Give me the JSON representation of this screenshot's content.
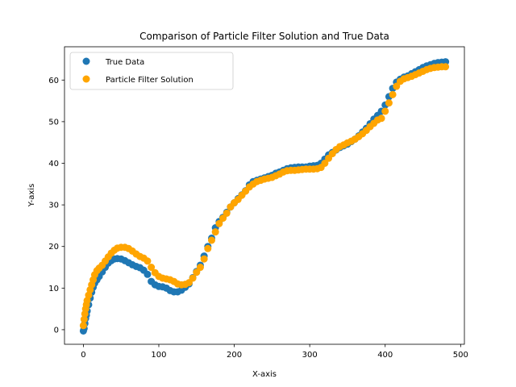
{
  "chart_data": {
    "type": "scatter",
    "title": "Comparison of Particle Filter Solution and True Data",
    "xlabel": "X-axis",
    "ylabel": "Y-axis",
    "xlim": [
      -25,
      505
    ],
    "ylim": [
      -3.5,
      68
    ],
    "xticks": [
      0,
      100,
      200,
      300,
      400,
      500
    ],
    "yticks": [
      0,
      10,
      20,
      30,
      40,
      50,
      60
    ],
    "legend_position": "upper-left",
    "grid": false,
    "series": [
      {
        "name": "True Data",
        "color": "#1f77b4",
        "x": [
          0,
          1,
          2,
          3,
          4,
          5,
          7,
          9,
          11,
          13,
          15,
          18,
          21,
          25,
          29,
          33,
          37,
          41,
          45,
          50,
          55,
          60,
          65,
          70,
          75,
          80,
          85,
          90,
          95,
          100,
          105,
          110,
          115,
          120,
          125,
          130,
          135,
          140,
          145,
          150,
          155,
          160,
          165,
          170,
          175,
          180,
          185,
          190,
          195,
          200,
          205,
          210,
          215,
          220,
          225,
          230,
          235,
          240,
          245,
          250,
          255,
          260,
          265,
          270,
          275,
          280,
          285,
          290,
          295,
          300,
          305,
          310,
          315,
          320,
          325,
          330,
          335,
          340,
          345,
          350,
          355,
          360,
          365,
          370,
          375,
          380,
          385,
          390,
          395,
          400,
          405,
          410,
          415,
          420,
          425,
          430,
          435,
          440,
          445,
          450,
          455,
          460,
          465,
          470,
          475,
          480
        ],
        "y": [
          -0.3,
          0.3,
          1.5,
          2.7,
          3.5,
          4.5,
          6.0,
          7.6,
          9.0,
          10.2,
          11.2,
          12.0,
          12.8,
          13.9,
          15.0,
          16.0,
          16.6,
          17.0,
          17.1,
          17.0,
          16.6,
          16.1,
          15.6,
          15.2,
          14.9,
          14.3,
          13.3,
          11.6,
          10.8,
          10.4,
          10.3,
          10.0,
          9.4,
          9.1,
          9.1,
          9.5,
          10.2,
          11.0,
          12.5,
          14.0,
          15.5,
          17.7,
          20.0,
          22.0,
          24.5,
          26.0,
          27.0,
          28.2,
          29.5,
          30.5,
          31.5,
          32.4,
          33.4,
          34.8,
          35.6,
          35.9,
          36.2,
          36.5,
          36.8,
          37.1,
          37.6,
          37.9,
          38.3,
          38.7,
          38.9,
          39.0,
          39.1,
          39.1,
          39.1,
          39.3,
          39.4,
          39.5,
          40.0,
          41.0,
          42.0,
          42.6,
          43.2,
          43.8,
          44.2,
          44.6,
          45.2,
          45.8,
          46.6,
          47.5,
          48.4,
          49.5,
          50.6,
          51.5,
          52.5,
          54.0,
          56.0,
          58.0,
          59.5,
          60.2,
          60.7,
          61.0,
          61.5,
          62.0,
          62.5,
          63.0,
          63.4,
          63.7,
          64.0,
          64.2,
          64.3,
          64.4
        ]
      },
      {
        "name": "Particle Filter Solution",
        "color": "#ffa500",
        "x": [
          0,
          1,
          2,
          3,
          4,
          5,
          7,
          9,
          11,
          13,
          15,
          18,
          21,
          25,
          29,
          33,
          37,
          41,
          45,
          50,
          55,
          60,
          65,
          70,
          75,
          80,
          85,
          90,
          95,
          100,
          105,
          110,
          115,
          120,
          125,
          130,
          135,
          140,
          145,
          150,
          155,
          160,
          165,
          170,
          175,
          180,
          185,
          190,
          195,
          200,
          205,
          210,
          215,
          220,
          225,
          230,
          235,
          240,
          245,
          250,
          255,
          260,
          265,
          270,
          275,
          280,
          285,
          290,
          295,
          300,
          305,
          310,
          315,
          320,
          325,
          330,
          335,
          340,
          345,
          350,
          355,
          360,
          365,
          370,
          375,
          380,
          385,
          390,
          395,
          400,
          405,
          410,
          415,
          420,
          425,
          430,
          435,
          440,
          445,
          450,
          455,
          460,
          465,
          470,
          475,
          480
        ],
        "y": [
          1.0,
          2.5,
          3.8,
          5.0,
          6.0,
          7.0,
          8.3,
          9.6,
          10.8,
          12.0,
          13.2,
          14.2,
          14.8,
          15.5,
          16.5,
          17.5,
          18.4,
          19.1,
          19.6,
          19.8,
          19.8,
          19.5,
          18.9,
          18.2,
          17.6,
          17.2,
          16.5,
          15.0,
          13.7,
          12.8,
          12.4,
          12.2,
          12.0,
          11.6,
          11.0,
          10.8,
          10.9,
          11.3,
          12.4,
          13.8,
          15.0,
          17.0,
          19.5,
          21.5,
          23.5,
          25.5,
          26.8,
          28.0,
          29.5,
          30.5,
          31.3,
          32.3,
          33.3,
          34.3,
          35.0,
          35.6,
          35.9,
          36.2,
          36.4,
          36.6,
          37.0,
          37.4,
          37.9,
          38.2,
          38.3,
          38.3,
          38.4,
          38.5,
          38.6,
          38.6,
          38.6,
          38.7,
          39.0,
          40.0,
          41.2,
          42.3,
          43.3,
          44.0,
          44.4,
          44.9,
          45.3,
          45.8,
          46.4,
          47.1,
          47.9,
          48.8,
          49.6,
          50.4,
          50.8,
          52.5,
          54.5,
          56.5,
          58.5,
          59.7,
          60.3,
          60.6,
          60.9,
          61.3,
          61.7,
          62.1,
          62.5,
          62.8,
          63.0,
          63.1,
          63.2,
          63.2
        ]
      }
    ]
  }
}
